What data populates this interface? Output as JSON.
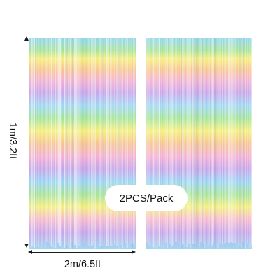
{
  "product": {
    "height_label": "1m/3.2ft",
    "width_label": "2m/6.5ft",
    "pack_label": "2PCS/Pack"
  },
  "curtain": {
    "colors": [
      "#8ed6f2",
      "#f8b4d4",
      "#c5a4e8",
      "#f4f07a",
      "#9fe28a",
      "#f6c68e",
      "#b7e3f7"
    ]
  }
}
